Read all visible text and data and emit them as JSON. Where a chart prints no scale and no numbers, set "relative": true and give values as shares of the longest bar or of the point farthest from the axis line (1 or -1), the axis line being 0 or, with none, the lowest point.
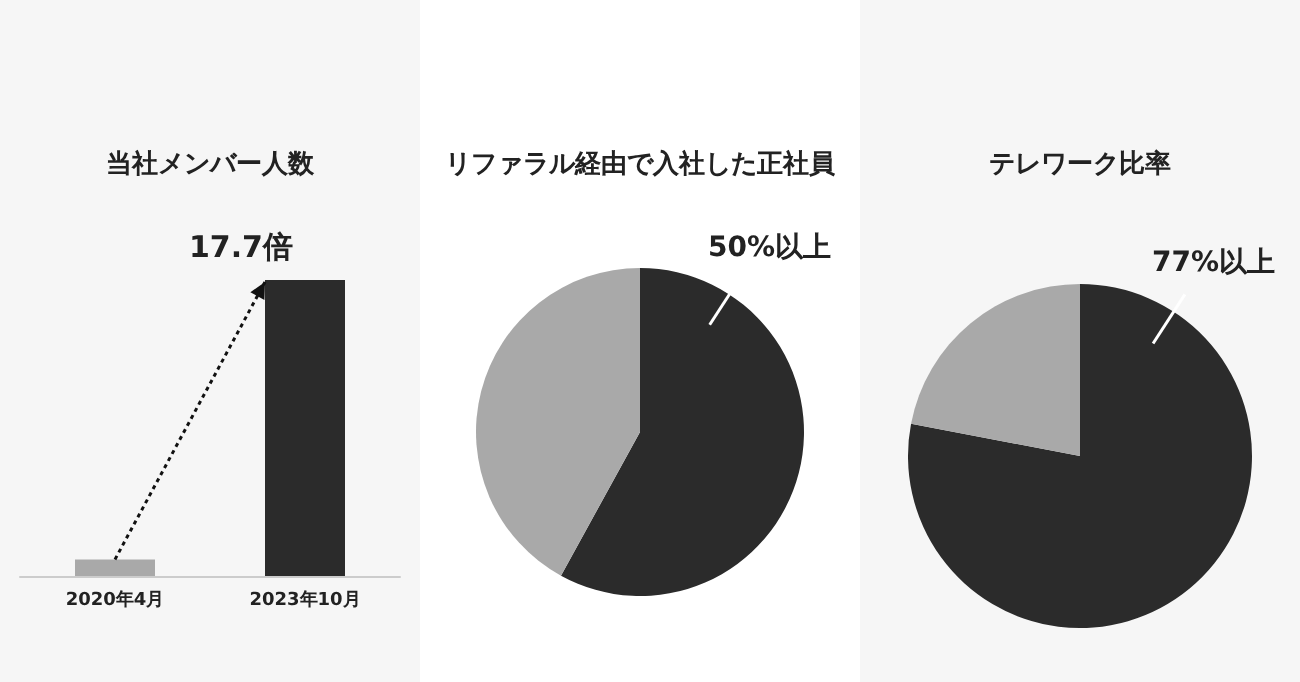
{
  "chart_data": [
    {
      "type": "bar",
      "title": "当社メンバー人数",
      "categories": [
        "2020年4月",
        "2023年10月"
      ],
      "values": [
        0.056,
        1
      ],
      "colors": [
        "#a9a9a9",
        "#2b2b2b"
      ],
      "relative": true,
      "annotations": [
        {
          "text": "17.7倍",
          "x": "2023年10月",
          "y": 1
        }
      ]
    },
    {
      "type": "pie",
      "title": "リファラル経由で入社した正社員",
      "categories": [
        null,
        null
      ],
      "values": [
        58,
        42
      ],
      "colors": [
        "#2b2b2b",
        "#a9a9a9"
      ],
      "annotations": [
        "50%以上"
      ]
    },
    {
      "type": "pie",
      "title": "テレワーク比率",
      "categories": [
        null,
        null
      ],
      "values": [
        78,
        22
      ],
      "colors": [
        "#2b2b2b",
        "#a9a9a9"
      ],
      "annotations": [
        "77%以上"
      ]
    }
  ]
}
